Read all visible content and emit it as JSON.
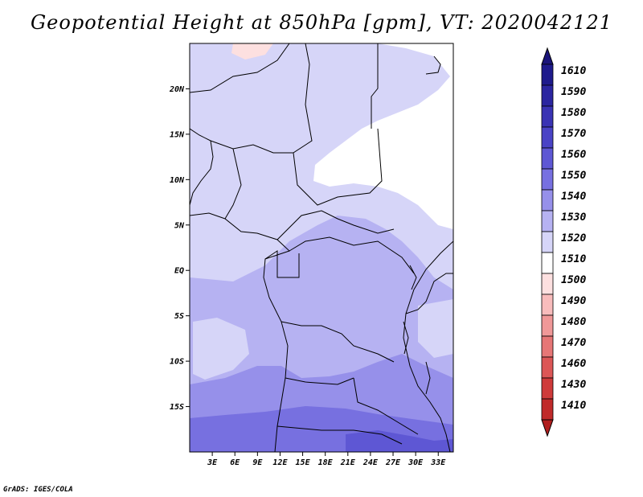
{
  "title": "Geopotential Height at 850hPa [gpm], VT: 2020042121",
  "credit": "GrADS: IGES/COLA",
  "map": {
    "lon_range": [
      0,
      35
    ],
    "lat_range": [
      -20,
      25
    ],
    "lat_ticks": [
      {
        "value": 20,
        "label": "20N"
      },
      {
        "value": 15,
        "label": "15N"
      },
      {
        "value": 10,
        "label": "10N"
      },
      {
        "value": 5,
        "label": "5N"
      },
      {
        "value": 0,
        "label": "EQ"
      },
      {
        "value": -5,
        "label": "5S"
      },
      {
        "value": -10,
        "label": "10S"
      },
      {
        "value": -15,
        "label": "15S"
      }
    ],
    "lon_ticks": [
      {
        "value": 3,
        "label": "3E"
      },
      {
        "value": 6,
        "label": "6E"
      },
      {
        "value": 9,
        "label": "9E"
      },
      {
        "value": 12,
        "label": "12E"
      },
      {
        "value": 15,
        "label": "15E"
      },
      {
        "value": 18,
        "label": "18E"
      },
      {
        "value": 21,
        "label": "21E"
      },
      {
        "value": 24,
        "label": "24E"
      },
      {
        "value": 27,
        "label": "27E"
      },
      {
        "value": 30,
        "label": "30E"
      },
      {
        "value": 33,
        "label": "33E"
      }
    ]
  },
  "colorbar": {
    "levels": [
      {
        "label": "1610",
        "color": "#1e1a8c"
      },
      {
        "label": "1590",
        "color": "#2b25a0"
      },
      {
        "label": "1580",
        "color": "#3a33b4"
      },
      {
        "label": "1570",
        "color": "#4a43c6"
      },
      {
        "label": "1560",
        "color": "#5e57d4"
      },
      {
        "label": "1550",
        "color": "#7770e0"
      },
      {
        "label": "1540",
        "color": "#9690ea"
      },
      {
        "label": "1530",
        "color": "#b6b2f2"
      },
      {
        "label": "1520",
        "color": "#d6d5f8"
      },
      {
        "label": "1510",
        "color": "#ffffff"
      },
      {
        "label": "1500",
        "color": "#fde0e0"
      },
      {
        "label": "1490",
        "color": "#f8bcbc"
      },
      {
        "label": "1480",
        "color": "#f09898"
      },
      {
        "label": "1470",
        "color": "#e67676"
      },
      {
        "label": "1460",
        "color": "#dc5656"
      },
      {
        "label": "1430",
        "color": "#cf3a3a"
      },
      {
        "label": "1410",
        "color": "#c02a2a"
      }
    ],
    "top_color": "#1a147a",
    "bottom_color": "#b01e1e"
  }
}
